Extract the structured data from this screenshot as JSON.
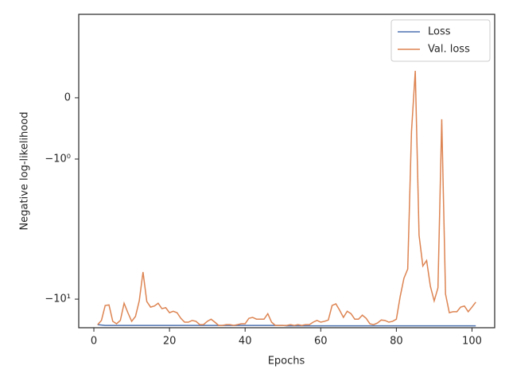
{
  "chart_data": {
    "type": "line",
    "xlabel": "Epochs",
    "ylabel": "Negative log-likelihood",
    "yscale": "symlog",
    "legend": "upper right",
    "x": [
      1,
      2,
      3,
      4,
      5,
      6,
      7,
      8,
      9,
      10,
      11,
      12,
      13,
      14,
      15,
      16,
      17,
      18,
      19,
      20,
      21,
      22,
      23,
      24,
      25,
      26,
      27,
      28,
      29,
      30,
      31,
      32,
      33,
      34,
      35,
      36,
      37,
      38,
      39,
      40,
      41,
      42,
      43,
      44,
      45,
      46,
      47,
      48,
      49,
      50,
      51,
      52,
      53,
      54,
      55,
      56,
      57,
      58,
      59,
      60,
      61,
      62,
      63,
      64,
      65,
      66,
      67,
      68,
      69,
      70,
      71,
      72,
      73,
      74,
      75,
      76,
      77,
      78,
      79,
      80,
      81,
      82,
      83,
      84,
      85,
      86,
      87,
      88,
      89,
      90,
      91,
      92,
      93,
      94,
      95,
      96,
      97,
      98,
      99,
      100,
      101
    ],
    "series": [
      {
        "name": "Loss",
        "color": "#4c72b0",
        "values": [
          -15.2,
          -15.3,
          -15.4,
          -15.4,
          -15.4,
          -15.4,
          -15.4,
          -15.4,
          -15.4,
          -15.4,
          -15.4,
          -15.4,
          -15.4,
          -15.4,
          -15.4,
          -15.4,
          -15.4,
          -15.4,
          -15.4,
          -15.4,
          -15.4,
          -15.4,
          -15.4,
          -15.4,
          -15.4,
          -15.4,
          -15.4,
          -15.4,
          -15.4,
          -15.4,
          -15.4,
          -15.4,
          -15.4,
          -15.4,
          -15.4,
          -15.4,
          -15.4,
          -15.4,
          -15.4,
          -15.4,
          -15.4,
          -15.4,
          -15.4,
          -15.4,
          -15.4,
          -15.4,
          -15.4,
          -15.4,
          -15.4,
          -15.4,
          -15.5,
          -15.5,
          -15.5,
          -15.5,
          -15.5,
          -15.5,
          -15.5,
          -15.5,
          -15.5,
          -15.5,
          -15.5,
          -15.5,
          -15.5,
          -15.5,
          -15.5,
          -15.5,
          -15.5,
          -15.5,
          -15.5,
          -15.5,
          -15.5,
          -15.5,
          -15.5,
          -15.5,
          -15.5,
          -15.5,
          -15.5,
          -15.5,
          -15.5,
          -15.5,
          -15.5,
          -15.5,
          -15.5,
          -15.5,
          -15.5,
          -15.5,
          -15.5,
          -15.5,
          -15.5,
          -15.5,
          -15.5,
          -15.5,
          -15.5,
          -15.5,
          -15.5,
          -15.5,
          -15.5,
          -15.5,
          -15.5,
          -15.5,
          -15.5
        ]
      },
      {
        "name": "Val. loss",
        "color": "#dd8452",
        "values": [
          -15.2,
          -14.2,
          -11.1,
          -11.0,
          -14.4,
          -15.0,
          -14.2,
          -10.7,
          -12.5,
          -14.4,
          -13.3,
          -10.3,
          -6.4,
          -10.4,
          -11.4,
          -11.2,
          -10.7,
          -11.7,
          -11.5,
          -12.5,
          -12.2,
          -12.5,
          -13.7,
          -14.6,
          -14.6,
          -14.2,
          -14.4,
          -15.2,
          -15.2,
          -14.4,
          -13.9,
          -14.6,
          -15.4,
          -15.4,
          -15.2,
          -15.2,
          -15.4,
          -15.2,
          -15.0,
          -15.0,
          -13.7,
          -13.5,
          -13.9,
          -13.9,
          -13.9,
          -12.7,
          -14.6,
          -15.4,
          -15.4,
          -15.4,
          -15.4,
          -15.2,
          -15.4,
          -15.2,
          -15.4,
          -15.2,
          -15.2,
          -14.6,
          -14.2,
          -14.6,
          -14.4,
          -14.1,
          -11.1,
          -10.8,
          -12.0,
          -13.5,
          -12.2,
          -12.7,
          -13.9,
          -13.9,
          -13.0,
          -13.7,
          -15.0,
          -15.2,
          -14.8,
          -14.1,
          -14.2,
          -14.6,
          -14.4,
          -13.9,
          -9.6,
          -7.1,
          -6.1,
          -0.55,
          0.44,
          -3.5,
          -5.8,
          -5.3,
          -8.1,
          -10.3,
          -8.3,
          -0.35,
          -9.2,
          -12.5,
          -12.3,
          -12.3,
          -11.4,
          -11.2,
          -12.3,
          -11.4,
          -10.5
        ]
      }
    ],
    "xlim": [
      -4,
      106
    ],
    "xticks": [
      0,
      20,
      40,
      60,
      80,
      100
    ],
    "ylim": [
      -16.0,
      1.44
    ],
    "yticks": [
      0,
      {
        "value": -1,
        "label": "−10⁰"
      },
      {
        "value": -10,
        "label": "−10¹"
      }
    ]
  }
}
